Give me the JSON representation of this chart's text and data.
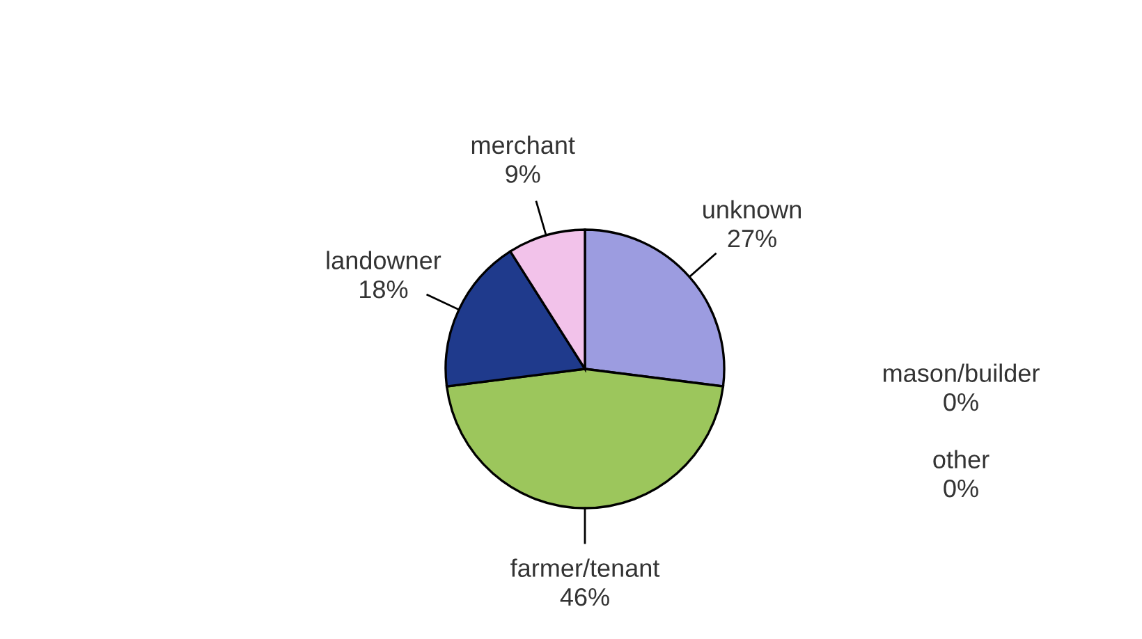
{
  "chart_data": {
    "type": "pie",
    "categories": [
      "unknown",
      "farmer/tenant",
      "landowner",
      "merchant",
      "mason/builder",
      "other"
    ],
    "values": [
      27,
      46,
      18,
      9,
      0,
      0
    ],
    "colors": [
      "#9c9ce0",
      "#9cc65c",
      "#1f3a8c",
      "#f2c2ea",
      "#993366",
      "#ffffcc"
    ],
    "value_labels": [
      "27%",
      "46%",
      "18%",
      "9%",
      "0%",
      "0%"
    ],
    "legend": false
  }
}
